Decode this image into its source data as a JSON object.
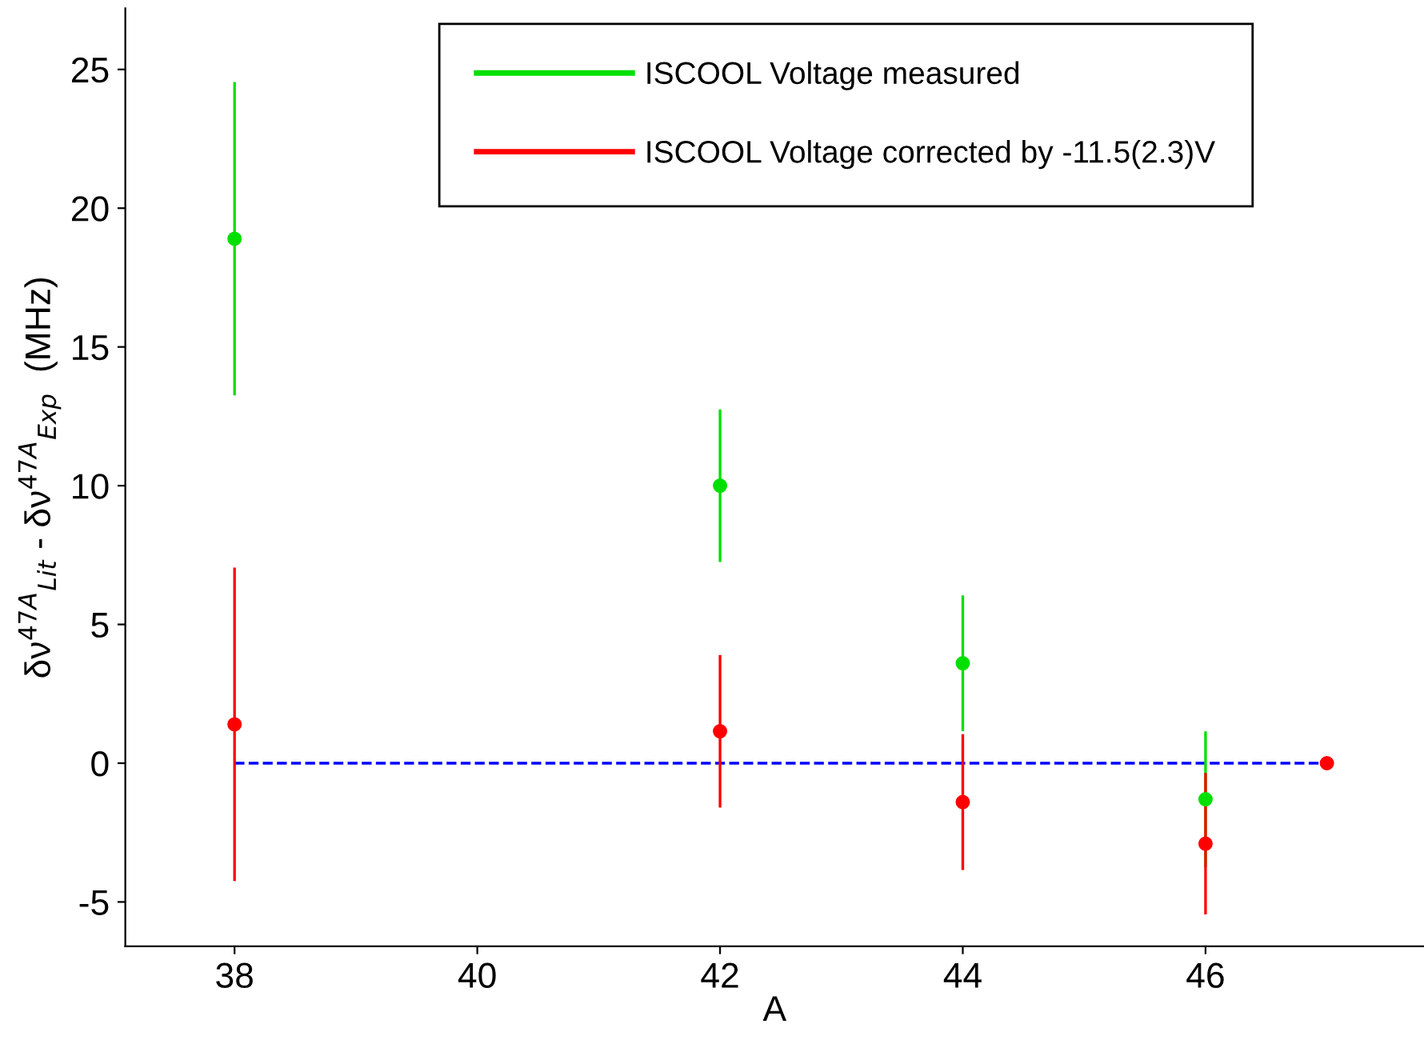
{
  "chart_data": {
    "type": "scatter",
    "xlabel": "A",
    "ylabel": "δν$^{47A}$$_{Lit}$ - δν$^{47A}$$_{Exp}$  (MHz)",
    "xlim": [
      37.1,
      47.8
    ],
    "ylim": [
      -6.6,
      27.2
    ],
    "xticks": [
      38,
      40,
      42,
      44,
      46
    ],
    "yticks": [
      -5,
      0,
      5,
      10,
      15,
      20,
      25
    ],
    "grid": false,
    "legend": "top right",
    "marker": "circle",
    "series": [
      {
        "type": "line",
        "color": "#0000ff",
        "line_style": "dashed",
        "marker": "none",
        "x": [
          38,
          47
        ],
        "values": [
          0,
          0
        ]
      },
      {
        "name": "ISCOOL Voltage measured",
        "color": "#00e000",
        "x": [
          38,
          42,
          44,
          46
        ],
        "values": [
          18.9,
          10.0,
          3.6,
          -1.3
        ],
        "errors": [
          5.6,
          2.7,
          2.4,
          2.4
        ]
      },
      {
        "name": "ISCOOL Voltage corrected by -11.5(2.3)V",
        "color": "#ff0000",
        "x": [
          38,
          42,
          44,
          46,
          47
        ],
        "values": [
          1.4,
          1.15,
          -1.4,
          -2.9,
          0
        ],
        "errors": [
          5.6,
          2.7,
          2.4,
          2.5,
          null
        ]
      }
    ]
  }
}
